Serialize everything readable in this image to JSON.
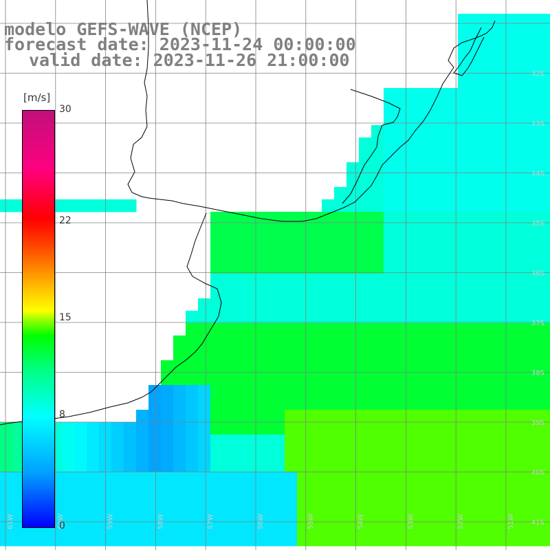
{
  "header": {
    "line1": "modelo GEFS-WAVE (NCEP)",
    "line2": "forecast date: 2023-11-24 00:00:00",
    "line3": "valid date: 2023-11-26 21:00:00"
  },
  "colorbar": {
    "unit": "m/s",
    "min": 0,
    "max": 30,
    "ticks": [
      {
        "label": "30",
        "value": 30
      },
      {
        "label": "22",
        "value": 22
      },
      {
        "label": "15",
        "value": 15
      },
      {
        "label": "8",
        "value": 8
      },
      {
        "label": "0",
        "value": 0
      }
    ]
  },
  "map": {
    "lat_labels": [
      "32S",
      "33S",
      "34S",
      "35S",
      "36S",
      "37S",
      "38S",
      "39S",
      "40S",
      "41S"
    ],
    "lon_labels": [
      "61W",
      "60W",
      "59W",
      "58W",
      "57W",
      "56W",
      "55W",
      "54W",
      "53W",
      "52W",
      "51W"
    ],
    "colors": {
      "land": "#ffffff",
      "grid": "#808080",
      "coast": "#000000",
      "arrow": "#ffffff"
    }
  }
}
